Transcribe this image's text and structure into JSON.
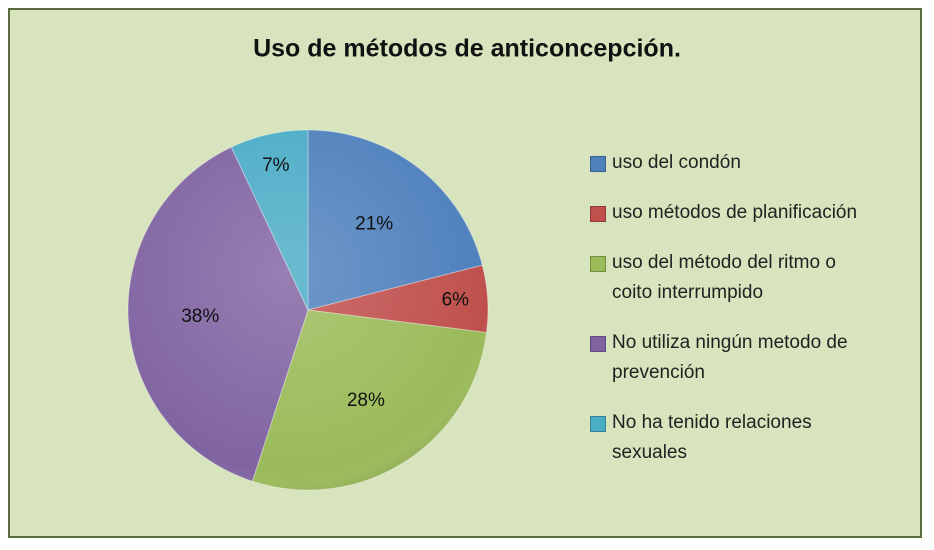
{
  "chart_data": {
    "type": "pie",
    "title": "Uso de métodos de anticoncepción.",
    "categories": [
      "uso del condón",
      "uso métodos de planificación",
      "uso del método del ritmo o coito interrumpido",
      "No utiliza ningún metodo de prevención",
      "No ha tenido relaciones sexuales"
    ],
    "values": [
      21,
      6,
      28,
      38,
      7
    ],
    "value_labels": [
      "21%",
      "6%",
      "28%",
      "38%",
      "7%"
    ],
    "colors": [
      "#4f81bd",
      "#c0504d",
      "#9bbb59",
      "#8064a2",
      "#4bacc6"
    ],
    "legend": "right"
  }
}
